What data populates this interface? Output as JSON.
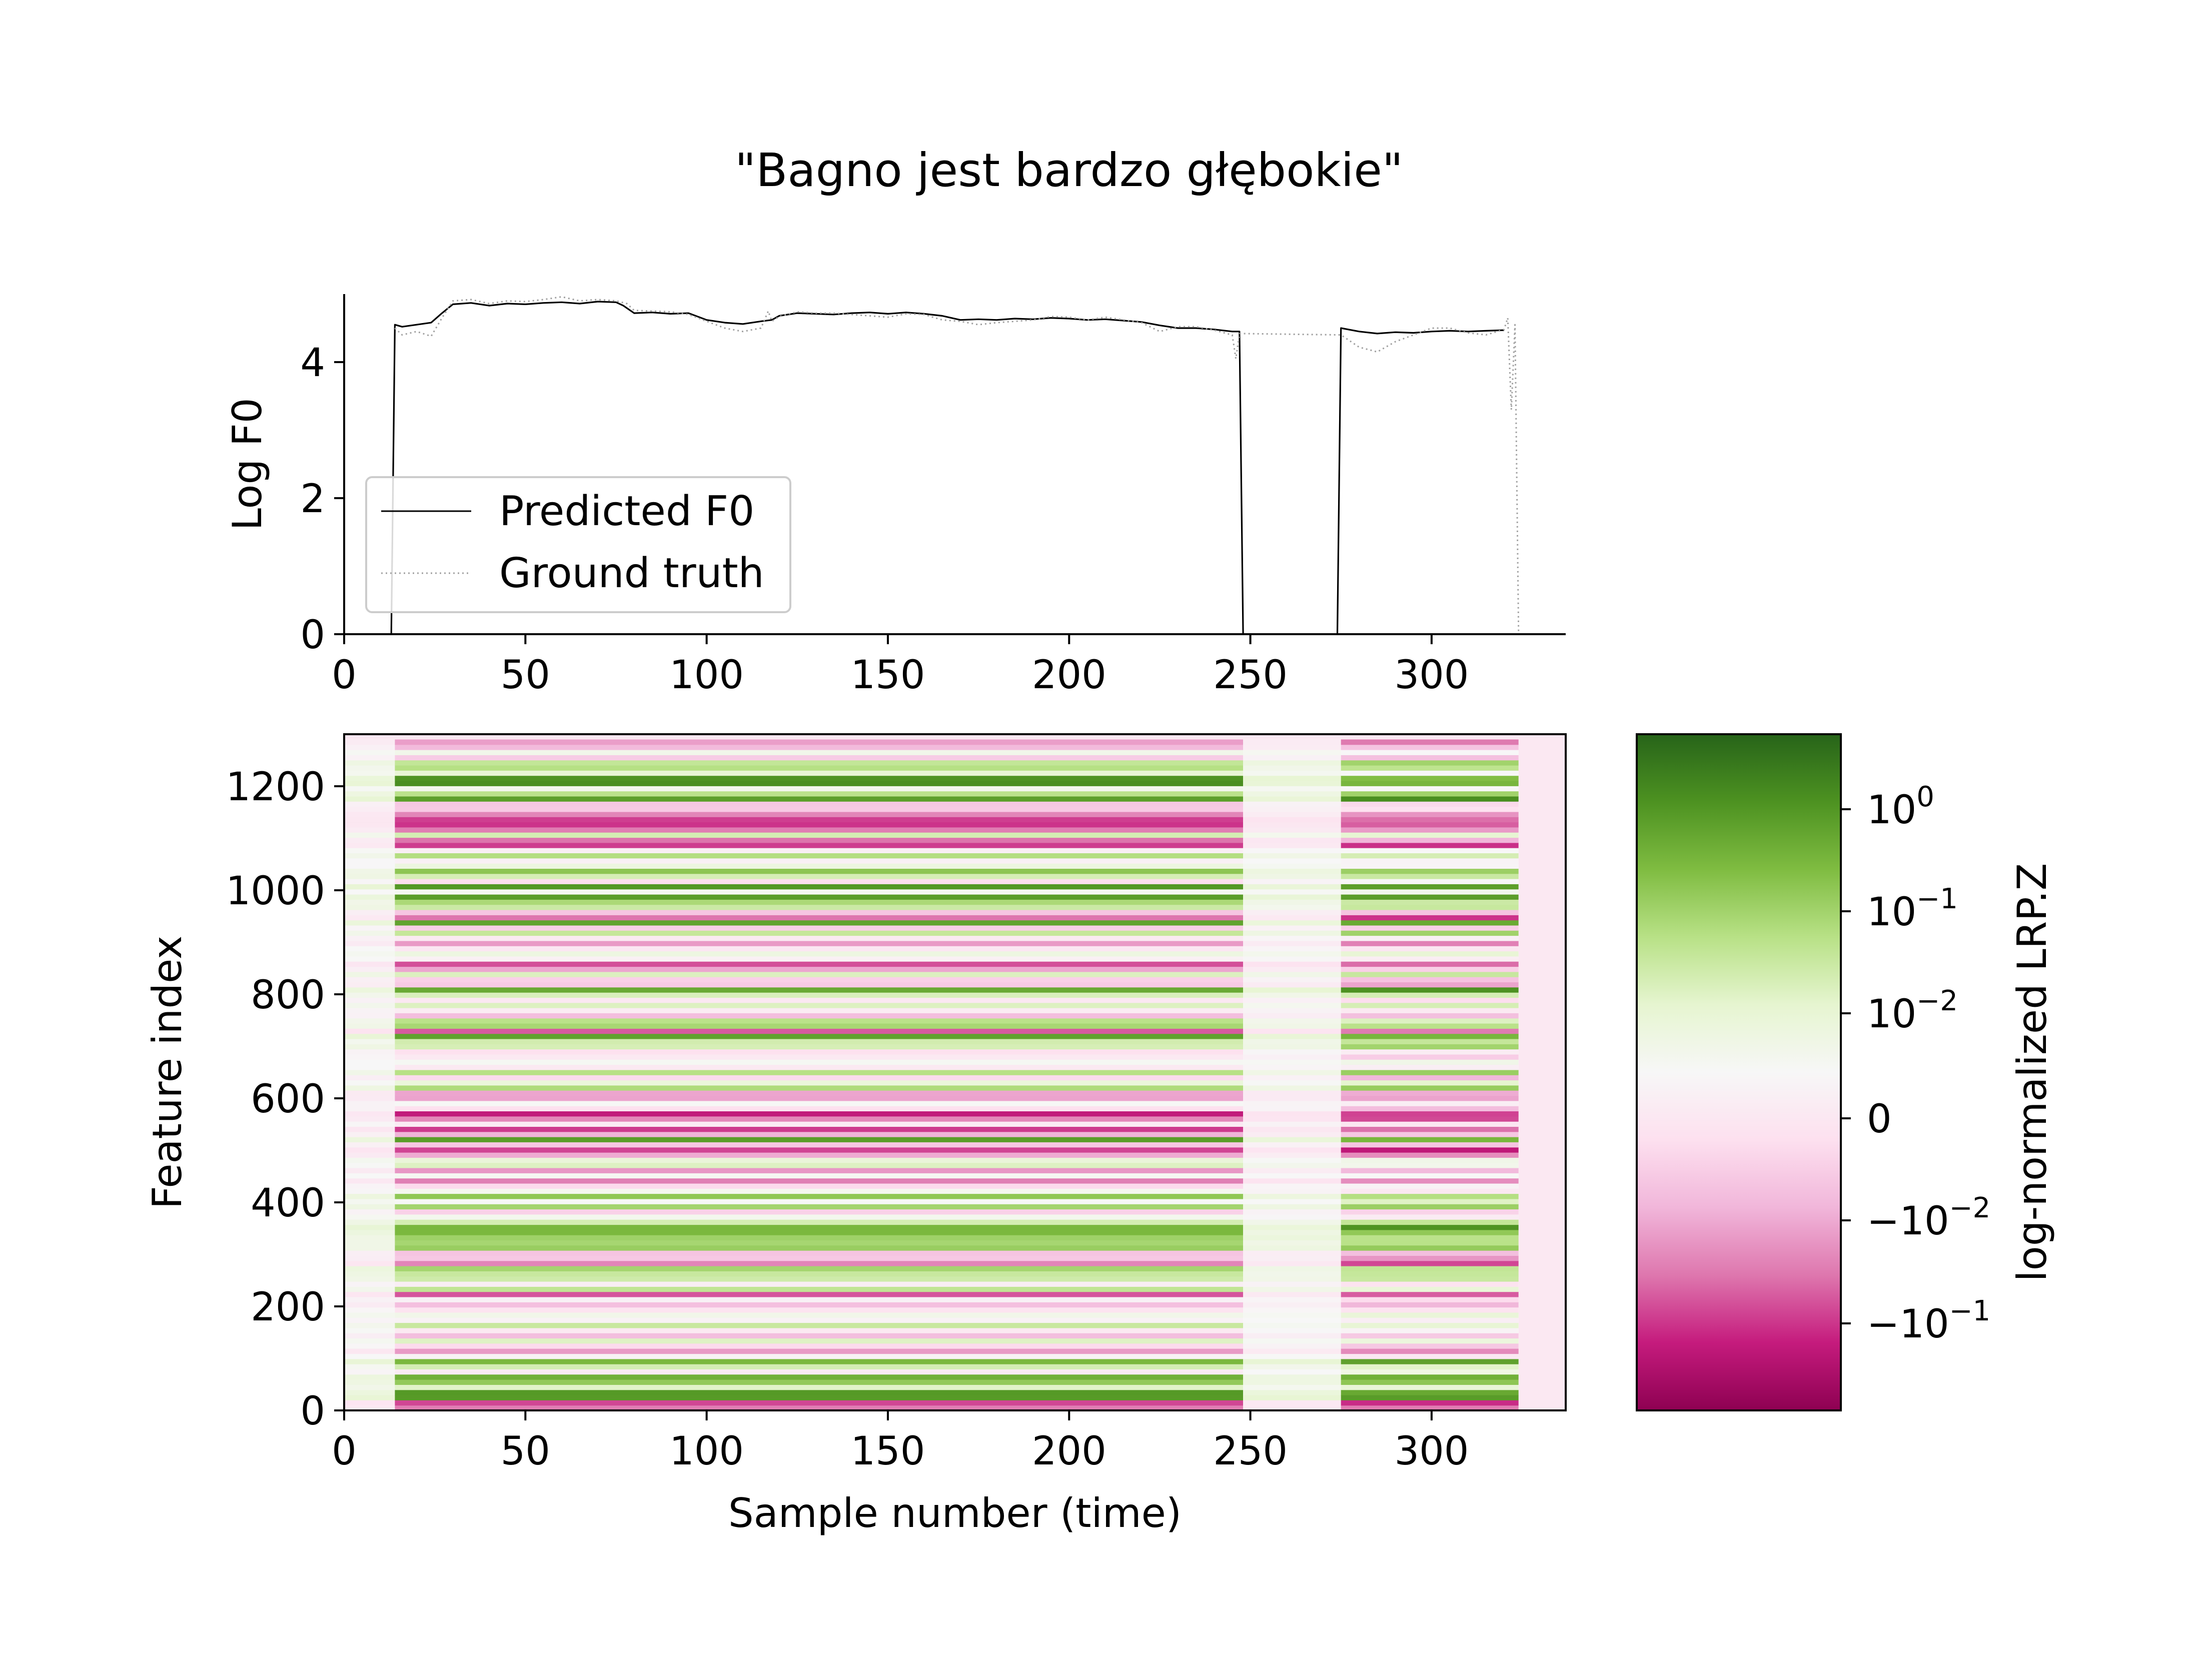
{
  "figure": {
    "title": "\"Bagno jest bardzo głębokie\""
  },
  "chart_data": [
    {
      "type": "line",
      "ylabel": "Log F0",
      "xlabel": "",
      "xlim": [
        0,
        337
      ],
      "ylim": [
        0,
        5
      ],
      "xticks": [
        "0",
        "50",
        "100",
        "150",
        "200",
        "250",
        "300"
      ],
      "yticks": [
        "0",
        "2",
        "4"
      ],
      "legend": {
        "placement": "lower-left"
      },
      "series": [
        {
          "name": "Predicted F0",
          "color": "#000000",
          "style": "solid",
          "points": [
            [
              0,
              0
            ],
            [
              13,
              0
            ],
            [
              14,
              4.55
            ],
            [
              16,
              4.52
            ],
            [
              20,
              4.55
            ],
            [
              24,
              4.58
            ],
            [
              27,
              4.72
            ],
            [
              30,
              4.85
            ],
            [
              35,
              4.87
            ],
            [
              40,
              4.83
            ],
            [
              45,
              4.86
            ],
            [
              50,
              4.85
            ],
            [
              55,
              4.87
            ],
            [
              60,
              4.88
            ],
            [
              65,
              4.86
            ],
            [
              70,
              4.89
            ],
            [
              75,
              4.88
            ],
            [
              77,
              4.83
            ],
            [
              80,
              4.72
            ],
            [
              85,
              4.73
            ],
            [
              90,
              4.71
            ],
            [
              95,
              4.72
            ],
            [
              100,
              4.62
            ],
            [
              105,
              4.58
            ],
            [
              110,
              4.56
            ],
            [
              115,
              4.6
            ],
            [
              118,
              4.62
            ],
            [
              120,
              4.68
            ],
            [
              125,
              4.72
            ],
            [
              130,
              4.71
            ],
            [
              135,
              4.7
            ],
            [
              140,
              4.72
            ],
            [
              145,
              4.73
            ],
            [
              150,
              4.71
            ],
            [
              155,
              4.73
            ],
            [
              160,
              4.71
            ],
            [
              165,
              4.68
            ],
            [
              170,
              4.62
            ],
            [
              175,
              4.63
            ],
            [
              180,
              4.62
            ],
            [
              185,
              4.64
            ],
            [
              190,
              4.63
            ],
            [
              195,
              4.65
            ],
            [
              200,
              4.64
            ],
            [
              205,
              4.62
            ],
            [
              210,
              4.63
            ],
            [
              215,
              4.61
            ],
            [
              220,
              4.59
            ],
            [
              225,
              4.54
            ],
            [
              230,
              4.5
            ],
            [
              235,
              4.5
            ],
            [
              240,
              4.48
            ],
            [
              245,
              4.45
            ],
            [
              247,
              4.45
            ],
            [
              248,
              0
            ],
            [
              274,
              0
            ],
            [
              275,
              4.5
            ],
            [
              280,
              4.45
            ],
            [
              285,
              4.42
            ],
            [
              290,
              4.44
            ],
            [
              295,
              4.43
            ],
            [
              300,
              4.45
            ],
            [
              305,
              4.46
            ],
            [
              310,
              4.45
            ],
            [
              315,
              4.46
            ],
            [
              320,
              4.47
            ]
          ]
        },
        {
          "name": "Ground truth",
          "color": "#a0a0a0",
          "style": "dotted",
          "points": [
            [
              14,
              4.5
            ],
            [
              16,
              4.4
            ],
            [
              20,
              4.45
            ],
            [
              24,
              4.38
            ],
            [
              27,
              4.65
            ],
            [
              30,
              4.9
            ],
            [
              35,
              4.92
            ],
            [
              40,
              4.86
            ],
            [
              45,
              4.9
            ],
            [
              50,
              4.89
            ],
            [
              55,
              4.92
            ],
            [
              60,
              4.96
            ],
            [
              65,
              4.9
            ],
            [
              70,
              4.92
            ],
            [
              75,
              4.9
            ],
            [
              78,
              4.86
            ],
            [
              80,
              4.76
            ],
            [
              85,
              4.75
            ],
            [
              90,
              4.74
            ],
            [
              95,
              4.7
            ],
            [
              100,
              4.6
            ],
            [
              105,
              4.5
            ],
            [
              110,
              4.45
            ],
            [
              115,
              4.5
            ],
            [
              117,
              4.75
            ],
            [
              118,
              4.6
            ],
            [
              120,
              4.67
            ],
            [
              125,
              4.74
            ],
            [
              130,
              4.72
            ],
            [
              135,
              4.72
            ],
            [
              140,
              4.7
            ],
            [
              145,
              4.68
            ],
            [
              150,
              4.66
            ],
            [
              155,
              4.71
            ],
            [
              160,
              4.7
            ],
            [
              165,
              4.62
            ],
            [
              170,
              4.6
            ],
            [
              175,
              4.55
            ],
            [
              180,
              4.58
            ],
            [
              185,
              4.6
            ],
            [
              190,
              4.62
            ],
            [
              195,
              4.67
            ],
            [
              200,
              4.66
            ],
            [
              205,
              4.62
            ],
            [
              210,
              4.66
            ],
            [
              215,
              4.62
            ],
            [
              220,
              4.58
            ],
            [
              225,
              4.45
            ],
            [
              230,
              4.52
            ],
            [
              235,
              4.52
            ],
            [
              240,
              4.47
            ],
            [
              245,
              4.4
            ],
            [
              246,
              4.05
            ],
            [
              247,
              4.42
            ],
            [
              275,
              4.4
            ],
            [
              280,
              4.22
            ],
            [
              285,
              4.15
            ],
            [
              290,
              4.3
            ],
            [
              295,
              4.4
            ],
            [
              300,
              4.5
            ],
            [
              305,
              4.5
            ],
            [
              310,
              4.43
            ],
            [
              315,
              4.4
            ],
            [
              320,
              4.48
            ],
            [
              321,
              4.65
            ],
            [
              322,
              3.3
            ],
            [
              323,
              4.55
            ],
            [
              324,
              0.0
            ]
          ]
        }
      ]
    },
    {
      "type": "heatmap",
      "xlabel": "Sample number (time)",
      "ylabel": "Feature index",
      "xlim": [
        0,
        337
      ],
      "ylim": [
        0,
        1300
      ],
      "xticks": [
        "0",
        "50",
        "100",
        "150",
        "200",
        "250",
        "300"
      ],
      "yticks": [
        "0",
        "200",
        "400",
        "600",
        "800",
        "1000",
        "1200"
      ],
      "colormap": "PiYG",
      "colorbar": {
        "label": "log-normalized LRP.Z",
        "ticks": [
          {
            "base": "10",
            "exp": "0",
            "prefix": ""
          },
          {
            "base": "10",
            "exp": "−1",
            "prefix": ""
          },
          {
            "base": "10",
            "exp": "−2",
            "prefix": ""
          },
          {
            "base": "0",
            "exp": "",
            "prefix": ""
          },
          {
            "base": "−10",
            "exp": "−2",
            "prefix": ""
          },
          {
            "base": "−10",
            "exp": "−1",
            "prefix": ""
          }
        ],
        "stops": [
          "#276419",
          "#4d9221",
          "#7fbc41",
          "#b8e186",
          "#e6f5d0",
          "#f7f7f7",
          "#fde0ef",
          "#f1b6da",
          "#de77ae",
          "#c51b7d",
          "#8e0152"
        ]
      },
      "time_segments": [
        {
          "start": 0,
          "end": 14,
          "state": "silence"
        },
        {
          "start": 14,
          "end": 248,
          "state": "voiced"
        },
        {
          "start": 248,
          "end": 275,
          "state": "silence"
        },
        {
          "start": 275,
          "end": 324,
          "state": "voiced"
        },
        {
          "start": 324,
          "end": 337,
          "state": "padding"
        }
      ]
    }
  ]
}
